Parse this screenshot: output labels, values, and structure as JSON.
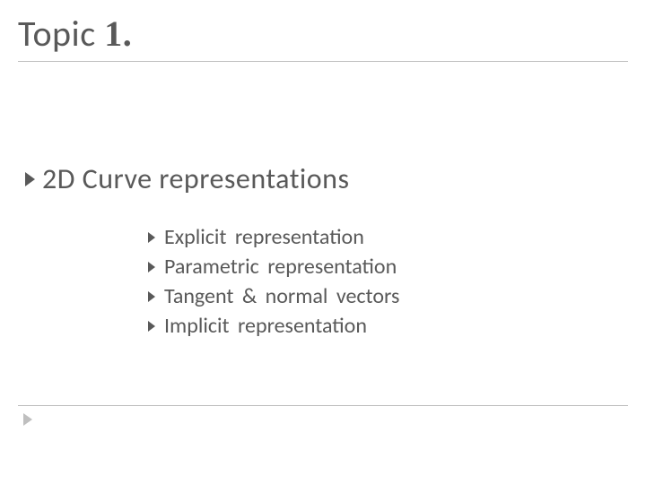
{
  "title": {
    "prefix": "Topic ",
    "number": "1.",
    "fontsize": 40,
    "color": "#595959"
  },
  "main": {
    "text": "2D  Curve representations",
    "fontsize": 32,
    "bullet_color": "#595959"
  },
  "items": [
    {
      "text": "Explicit  representation"
    },
    {
      "text": "Parametric  representation"
    },
    {
      "text": "Tangent  &  normal  vectors"
    },
    {
      "text": "Implicit  representation"
    }
  ],
  "sub_fontsize": 24,
  "rule_color": "#bfbfbf",
  "footer_bullet_color": "#bfbfbf",
  "background_color": "#ffffff"
}
